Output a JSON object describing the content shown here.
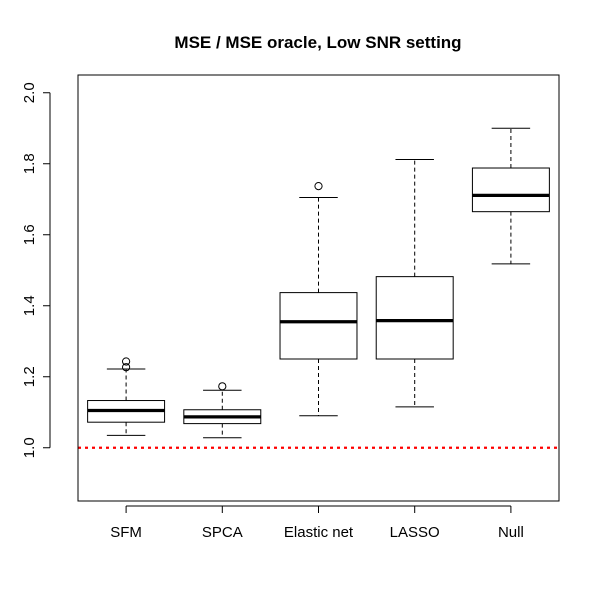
{
  "chart_data": {
    "type": "boxplot",
    "title": "MSE / MSE oracle, Low SNR setting",
    "xlabel": "",
    "ylabel": "",
    "ylim": [
      0.85,
      2.05
    ],
    "yticks": [
      1.0,
      1.2,
      1.4,
      1.6,
      1.8,
      2.0
    ],
    "ytick_labels": [
      "1.0",
      "1.2",
      "1.4",
      "1.6",
      "1.8",
      "2.0"
    ],
    "categories": [
      "SFM",
      "SPCA",
      "Elastic net",
      "LASSO",
      "Null"
    ],
    "boxes": [
      {
        "name": "SFM",
        "whisker_low": 1.035,
        "q1": 1.072,
        "median": 1.105,
        "q3": 1.133,
        "whisker_high": 1.222,
        "outliers": [
          1.227,
          1.243
        ]
      },
      {
        "name": "SPCA",
        "whisker_low": 1.028,
        "q1": 1.068,
        "median": 1.087,
        "q3": 1.107,
        "whisker_high": 1.162,
        "outliers": [
          1.173
        ]
      },
      {
        "name": "Elastic net",
        "whisker_low": 1.09,
        "q1": 1.25,
        "median": 1.355,
        "q3": 1.437,
        "whisker_high": 1.705,
        "outliers": [
          1.737
        ]
      },
      {
        "name": "LASSO",
        "whisker_low": 1.115,
        "q1": 1.25,
        "median": 1.358,
        "q3": 1.482,
        "whisker_high": 1.812,
        "outliers": []
      },
      {
        "name": "Null",
        "whisker_low": 1.518,
        "q1": 1.665,
        "median": 1.711,
        "q3": 1.788,
        "whisker_high": 1.9,
        "outliers": []
      }
    ],
    "reference_line": {
      "y": 1.0,
      "color": "#ff0000",
      "style": "dotted"
    },
    "grid": false
  }
}
